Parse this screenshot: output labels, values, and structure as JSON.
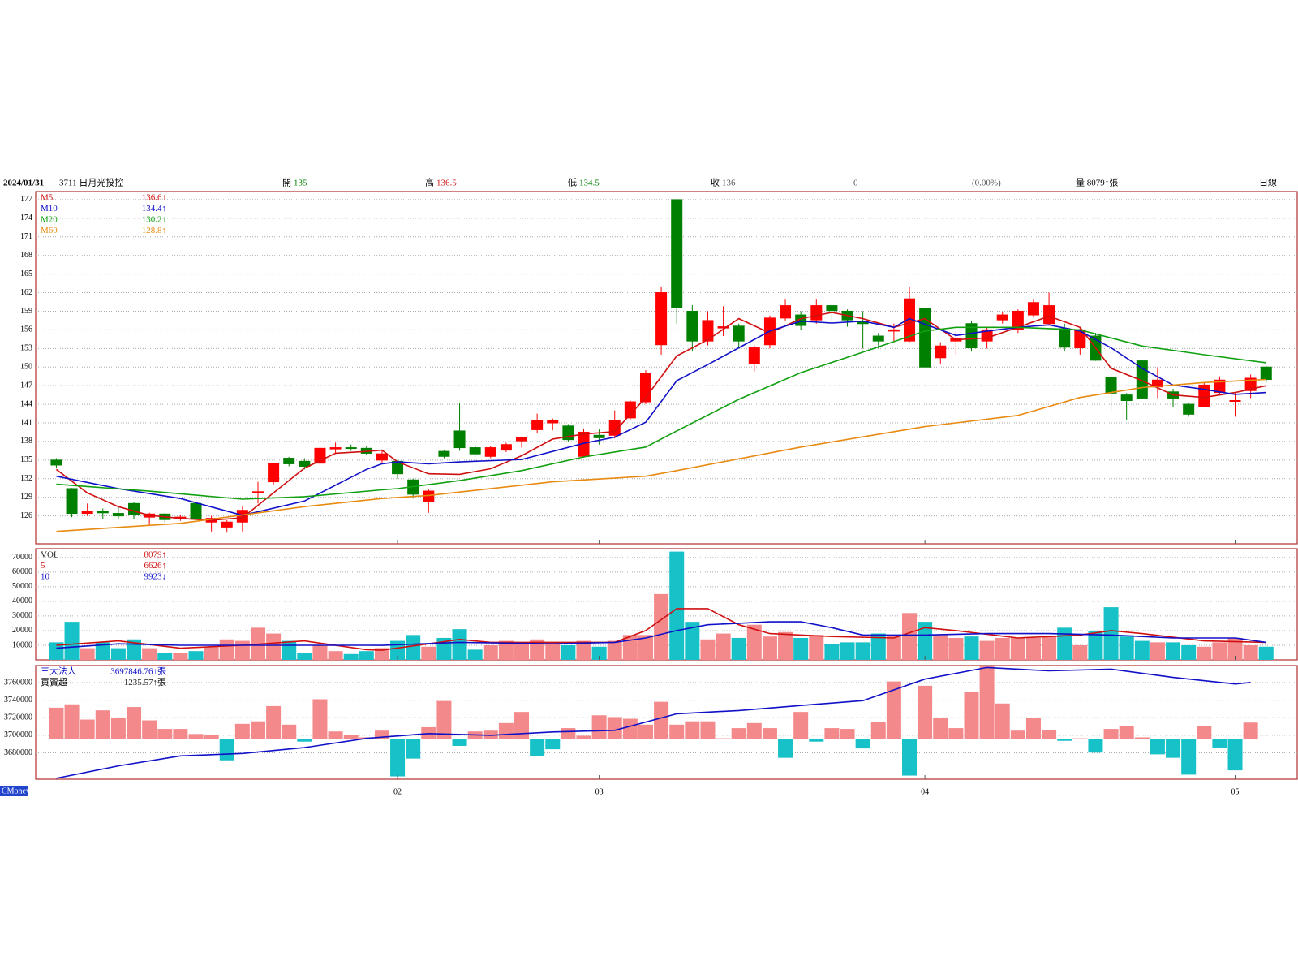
{
  "header": {
    "date": "2024/01/31",
    "stock": "3711 日月光投控",
    "open_label": "開",
    "open": 135,
    "high_label": "高",
    "high": 136.5,
    "low_label": "低",
    "low": 134.5,
    "close_label": "收",
    "close": 136,
    "change": 0,
    "change_pct": "(0.00%)",
    "volume": "量 8079↑張",
    "period": "日線"
  },
  "footer": {
    "brand": "CMoney"
  },
  "chart_data": [
    {
      "type": "candlestick",
      "xlim": [
        -1.33,
        80
      ],
      "ylim": [
        121.5,
        178.3
      ],
      "yticks": [
        126,
        129,
        132,
        135,
        138,
        141,
        144,
        147,
        150,
        153,
        156,
        159,
        162,
        165,
        168,
        171,
        174,
        177
      ],
      "grid": true,
      "up_color": "#ff0000",
      "down_color": "#008000",
      "open": [
        135,
        130.4,
        126.4,
        126.8,
        126.4,
        128,
        125.8,
        126.3,
        125.6,
        128,
        125,
        124.2,
        125,
        129.7,
        131.5,
        135.3,
        134.8,
        134.5,
        136.8,
        137,
        136.9,
        135,
        134.8,
        131.8,
        128.3,
        136.4,
        139.7,
        137,
        135.6,
        136.6,
        138.1,
        139.9,
        141,
        140.5,
        135.6,
        139,
        139,
        141.8,
        144.4,
        153.6,
        177,
        159,
        154.2,
        156.3,
        156.6,
        150.6,
        153.6,
        157.9,
        158.4,
        157.6,
        159.9,
        159,
        157.4,
        155,
        155.8,
        154.2,
        159.4,
        151.5,
        154.2,
        157,
        154.2,
        157.6,
        156,
        158.4,
        157,
        156.2,
        153.1,
        155,
        148.4,
        145.5,
        151,
        146.8,
        146,
        144,
        143.6,
        145.9,
        144.5,
        146.2,
        150
      ],
      "high": [
        135.3,
        130.5,
        128,
        127.2,
        127.5,
        128.2,
        126.5,
        126.5,
        126.2,
        128.3,
        126,
        125.3,
        127.5,
        131.5,
        134.6,
        135.5,
        135.3,
        137.3,
        137.8,
        137.5,
        137.3,
        136.5,
        135,
        132,
        130.3,
        136.6,
        144.2,
        137.5,
        137.3,
        137.8,
        138.8,
        142.5,
        141.7,
        140.8,
        140,
        140,
        143,
        144.6,
        149.5,
        163,
        177,
        160,
        159,
        159.8,
        157,
        153.5,
        158.3,
        161,
        159,
        161,
        160.3,
        159.3,
        159,
        155.5,
        157,
        163,
        159.6,
        154,
        155.8,
        157.5,
        156.5,
        158.8,
        159.3,
        161,
        162,
        157,
        156.5,
        155.5,
        148.8,
        145.8,
        151.2,
        150,
        146.5,
        144.3,
        147.5,
        148.5,
        146,
        148.8,
        150.2
      ],
      "low": [
        133.8,
        125.8,
        126,
        125.5,
        125.5,
        125.5,
        124.5,
        125,
        125.2,
        125.4,
        123.5,
        123.3,
        123.5,
        128,
        131,
        134,
        133.5,
        134.2,
        136,
        136.5,
        135.8,
        134.5,
        132,
        128.8,
        126.5,
        135.3,
        136.5,
        135.5,
        135.3,
        136.3,
        137,
        139.3,
        139.8,
        138,
        135.4,
        137.5,
        138.5,
        141.5,
        144,
        152,
        157,
        152.5,
        153.5,
        155,
        153,
        149.3,
        153,
        157.5,
        156,
        157,
        157.5,
        156.5,
        153,
        153,
        154,
        154,
        150,
        150.5,
        152,
        152.5,
        153,
        157,
        155.5,
        158,
        156.8,
        152.5,
        152,
        151,
        143,
        141.5,
        144.8,
        145,
        143.5,
        142,
        143.5,
        145.5,
        142,
        145,
        147.5
      ],
      "close": [
        134.2,
        126.4,
        126.8,
        126.5,
        126,
        126.2,
        126.3,
        125.4,
        125.8,
        125.6,
        125.6,
        125,
        126.9,
        129.9,
        134.4,
        134.4,
        134,
        136.9,
        137,
        136.9,
        136.1,
        136,
        132.8,
        129.5,
        130,
        135.6,
        137,
        136,
        137,
        137.5,
        138.6,
        141.4,
        141.4,
        138.3,
        139.5,
        138.6,
        141.4,
        144.4,
        149,
        162,
        159.6,
        154.2,
        157.5,
        156.5,
        154.2,
        153.1,
        157.9,
        159.9,
        156.7,
        159.9,
        159.1,
        157.6,
        157,
        154.2,
        156,
        161,
        150,
        153.4,
        154.6,
        153.1,
        156,
        158.4,
        159,
        160.4,
        159.9,
        153.2,
        156,
        151.1,
        145.8,
        144.6,
        145,
        147.9,
        145,
        142.4,
        147.1,
        147.9,
        144.6,
        148.2,
        148
      ],
      "lines": [
        {
          "name": "M5",
          "legend_value": "136.6↑",
          "color": "#d01010",
          "x": [
            0,
            2,
            4,
            6,
            8,
            10,
            12,
            14,
            16,
            18,
            20,
            21,
            22,
            24,
            26,
            28,
            30,
            32,
            34,
            36,
            38,
            40,
            42,
            44,
            46,
            48,
            50,
            52,
            54,
            56,
            58,
            60,
            62,
            64,
            66,
            68,
            70,
            72,
            74,
            76,
            78
          ],
          "values": [
            133.5,
            129.7,
            127.5,
            126.1,
            125.6,
            125.3,
            125.7,
            129.7,
            133.7,
            136.1,
            136.4,
            136.6,
            134.7,
            132.8,
            132.7,
            133.6,
            135.7,
            138.4,
            139.2,
            139.6,
            145.1,
            151.8,
            154.4,
            157.8,
            155.5,
            157.8,
            158.8,
            157.8,
            156.4,
            157.8,
            154.4,
            154.7,
            156.4,
            158.2,
            156.4,
            149.8,
            147.8,
            145.5,
            145.1,
            145.9,
            147
          ]
        },
        {
          "name": "M10",
          "legend_value": "134.4↑",
          "color": "#1010c8",
          "x": [
            0,
            4,
            8,
            12,
            16,
            20,
            21,
            22,
            24,
            26,
            30,
            34,
            36,
            38,
            40,
            42,
            44,
            46,
            48,
            50,
            52,
            54,
            55,
            58,
            60,
            62,
            64,
            66,
            68,
            70,
            72,
            74,
            76,
            78
          ],
          "values": [
            132.4,
            130.4,
            128.8,
            126.1,
            128.4,
            133.5,
            134.4,
            134.7,
            134.4,
            134.7,
            135.1,
            137.7,
            138.7,
            141.1,
            147.8,
            150.4,
            153.1,
            155.8,
            157.4,
            157.1,
            157.4,
            156.4,
            157.8,
            155.1,
            155.8,
            156.4,
            156.8,
            155.8,
            153.1,
            149.8,
            147.1,
            146.4,
            145.6,
            145.9
          ]
        },
        {
          "name": "M20",
          "legend_value": "130.2↑",
          "color": "#10a010",
          "x": [
            0,
            6,
            12,
            16,
            21,
            22,
            26,
            30,
            34,
            38,
            40,
            44,
            48,
            52,
            56,
            58,
            62,
            66,
            70,
            74,
            78
          ],
          "values": [
            131.1,
            130,
            128.7,
            129.1,
            130.2,
            130.4,
            131.7,
            133.3,
            135.5,
            137.1,
            139.7,
            144.8,
            149.1,
            152.4,
            155.8,
            156.4,
            156.4,
            156,
            153.4,
            152,
            150.7
          ]
        },
        {
          "name": "M60",
          "legend_value": "128.8↑",
          "color": "#e88a10",
          "x": [
            0,
            8,
            16,
            21,
            24,
            32,
            38,
            40,
            48,
            56,
            62,
            66,
            70,
            74,
            78
          ],
          "values": [
            123.5,
            124.8,
            127.5,
            128.8,
            129.3,
            131.5,
            132.4,
            133.3,
            137.1,
            140.4,
            142.2,
            145.1,
            146.7,
            147.5,
            148
          ]
        }
      ]
    },
    {
      "type": "bar",
      "xlim": [
        -1.33,
        80
      ],
      "ylim": [
        0,
        76000
      ],
      "yticks": [
        10000,
        20000,
        30000,
        40000,
        50000,
        60000,
        70000
      ],
      "grid": true,
      "name": "VOL",
      "legend_value": "8079↑",
      "up_color": "#f4898b",
      "down_color": "#17c1c8",
      "values": [
        12000,
        26000,
        8000,
        12000,
        8000,
        14000,
        8000,
        5000,
        5000,
        6000,
        9000,
        14000,
        13000,
        22000,
        18000,
        13000,
        5000,
        10000,
        6000,
        4000,
        6000,
        8079,
        13000,
        17000,
        9000,
        15000,
        21000,
        7000,
        10000,
        13000,
        11000,
        14000,
        12000,
        10000,
        13000,
        9000,
        13000,
        17000,
        17000,
        45000,
        74000,
        26000,
        14000,
        18000,
        15000,
        24000,
        16000,
        19000,
        15000,
        17000,
        11000,
        12000,
        12000,
        18000,
        17000,
        32000,
        26000,
        17000,
        15000,
        16000,
        13000,
        15000,
        15000,
        15000,
        16000,
        22000,
        10000,
        20000,
        36000,
        16000,
        13000,
        12000,
        12000,
        10000,
        9000,
        12000,
        15000,
        10000,
        9000
      ],
      "lines": [
        {
          "name": "5",
          "legend_value": "6626↑",
          "color": "#d01010",
          "x": [
            0,
            4,
            8,
            12,
            16,
            20,
            21,
            24,
            26,
            28,
            32,
            36,
            38,
            40,
            42,
            44,
            46,
            50,
            54,
            56,
            58,
            62,
            66,
            68,
            70,
            74,
            78
          ],
          "values": [
            10000,
            13000,
            8000,
            10000,
            13000,
            7000,
            6626,
            11000,
            14000,
            12000,
            12000,
            12000,
            20000,
            35000,
            35000,
            24000,
            18000,
            16000,
            15000,
            22000,
            20000,
            15000,
            17000,
            20000,
            18000,
            13000,
            12000
          ]
        },
        {
          "name": "10",
          "legend_value": "9923↓",
          "color": "#1010c8",
          "x": [
            0,
            4,
            8,
            14,
            20,
            21,
            26,
            32,
            36,
            38,
            40,
            42,
            44,
            46,
            48,
            50,
            52,
            56,
            60,
            64,
            68,
            72,
            76,
            78
          ],
          "values": [
            8000,
            11000,
            10000,
            10000,
            10000,
            9923,
            12000,
            11000,
            12000,
            15000,
            20000,
            24000,
            25000,
            26000,
            26000,
            22000,
            17000,
            17000,
            18000,
            18000,
            17000,
            15000,
            15000,
            12000
          ]
        }
      ]
    },
    {
      "type": "bar_line",
      "xlim": [
        -1.33,
        80
      ],
      "ylim": [
        3650000,
        3779400
      ],
      "yticks": [
        3680000,
        3700000,
        3720000,
        3740000,
        3760000
      ],
      "y2lim": [
        -3000,
        5500
      ],
      "grid": true,
      "xticks": [
        {
          "value": 22,
          "label": "02"
        },
        {
          "value": 35,
          "label": "03"
        },
        {
          "value": 56,
          "label": "04"
        },
        {
          "value": 76,
          "label": "05"
        }
      ],
      "line": {
        "name": "三大法人",
        "legend_value": "3697846.76↑張",
        "color": "#1010c8",
        "x": [
          0,
          4,
          8,
          12,
          16,
          20,
          21,
          24,
          28,
          32,
          36,
          40,
          44,
          48,
          52,
          56,
          60,
          64,
          68,
          72,
          76,
          77
        ],
        "values": [
          3651000,
          3665200,
          3676500,
          3679300,
          3686000,
          3696500,
          3697846.76,
          3701900,
          3700000,
          3703800,
          3705600,
          3724500,
          3728200,
          3733900,
          3739500,
          3764000,
          3777200,
          3773400,
          3775300,
          3765900,
          3758400,
          3760200
        ]
      },
      "bars": {
        "name": "買賣超",
        "legend_value": "1235.57↑張",
        "axis": "y2",
        "positive_color": "#f4898b",
        "negative_color": "#17c1c8",
        "values": [
          2350,
          2600,
          1460,
          2150,
          1590,
          2400,
          1400,
          760,
          760,
          380,
          320,
          -1590,
          1140,
          1330,
          2470,
          1080,
          -190,
          2980,
          570,
          320,
          130,
          630,
          -2790,
          -1460,
          890,
          2850,
          -510,
          570,
          630,
          1200,
          2030,
          -1270,
          -760,
          820,
          250,
          1780,
          1650,
          1520,
          1080,
          2790,
          1080,
          1330,
          1330,
          60,
          820,
          1200,
          820,
          -1400,
          2030,
          -190,
          820,
          760,
          -700,
          1270,
          4310,
          -2730,
          3990,
          1590,
          820,
          3550,
          5500,
          2660,
          630,
          1590,
          700,
          -130,
          60,
          -1010,
          760,
          950,
          130,
          -1140,
          -1400,
          -2660,
          950,
          -630,
          -2340,
          1235.57,
          null
        ]
      }
    }
  ]
}
